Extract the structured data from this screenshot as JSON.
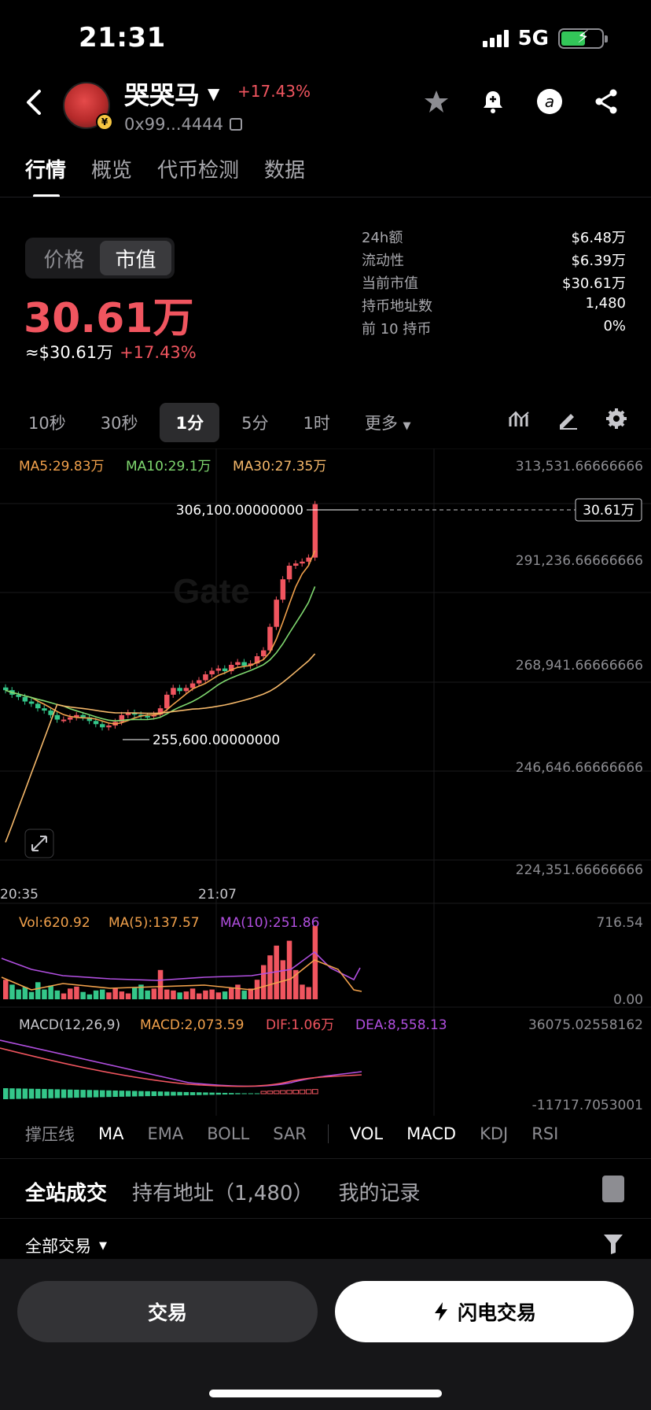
{
  "status": {
    "time": "21:31",
    "network": "5G"
  },
  "token": {
    "name": "哭哭马",
    "change": "+17.43%",
    "address": "0x99...4444"
  },
  "tabs": [
    "行情",
    "概览",
    "代币检测",
    "数据"
  ],
  "toggle": {
    "price": "价格",
    "mcap": "市值"
  },
  "price": {
    "main": "30.61万",
    "usd": "≈$30.61万",
    "change": "+17.43%"
  },
  "stats": [
    {
      "k": "24h额",
      "v": "$6.48万"
    },
    {
      "k": "流动性",
      "v": "$6.39万"
    },
    {
      "k": "当前市值",
      "v": "$30.61万"
    },
    {
      "k": "持币地址数",
      "v": "1,480"
    },
    {
      "k": "前 10 持币",
      "v": "0%"
    }
  ],
  "intervals": [
    "10秒",
    "30秒",
    "1分",
    "5分",
    "1时",
    "更多"
  ],
  "chart_legend": {
    "ma5": "MA5:29.83万",
    "ma10": "MA10:29.1万",
    "ma30": "MA30:27.35万"
  },
  "chart_data": {
    "type": "candlestick",
    "y_ticks": [
      "313,531.66666666",
      "291,236.66666666",
      "268,941.66666666",
      "246,646.66666666",
      "224,351.66666666"
    ],
    "ylim": [
      224351.66666666,
      313531.66666666
    ],
    "x_ticks": [
      "20:35",
      "21:07"
    ],
    "high_label": "306,100.00000000",
    "low_label": "255,600.00000000",
    "current_tag": "30.61万",
    "volume": {
      "legend": [
        "Vol:620.92",
        "MA(5):137.57",
        "MA(10):251.86"
      ],
      "max": "716.54",
      "min": "0.00"
    },
    "macd": {
      "legend": [
        "MACD(12,26,9)",
        "MACD:2,073.59",
        "DIF:1.06万",
        "DEA:8,558.13"
      ],
      "max": "36075.02558162",
      "min": "-11717.7053001"
    }
  },
  "indicators": [
    "撑压线",
    "MA",
    "EMA",
    "BOLL",
    "SAR",
    "VOL",
    "MACD",
    "KDJ",
    "RSI"
  ],
  "trade_tabs": [
    "全站成交",
    "持有地址（1,480）",
    "我的记录"
  ],
  "filter": "全部交易",
  "buttons": {
    "trade": "交易",
    "flash": "闪电交易"
  },
  "colors": {
    "up": "#f0555f",
    "down": "#34c78a",
    "ma5": "#f0a04b",
    "ma10": "#7fd86f",
    "ma30": "#f5b86a"
  }
}
